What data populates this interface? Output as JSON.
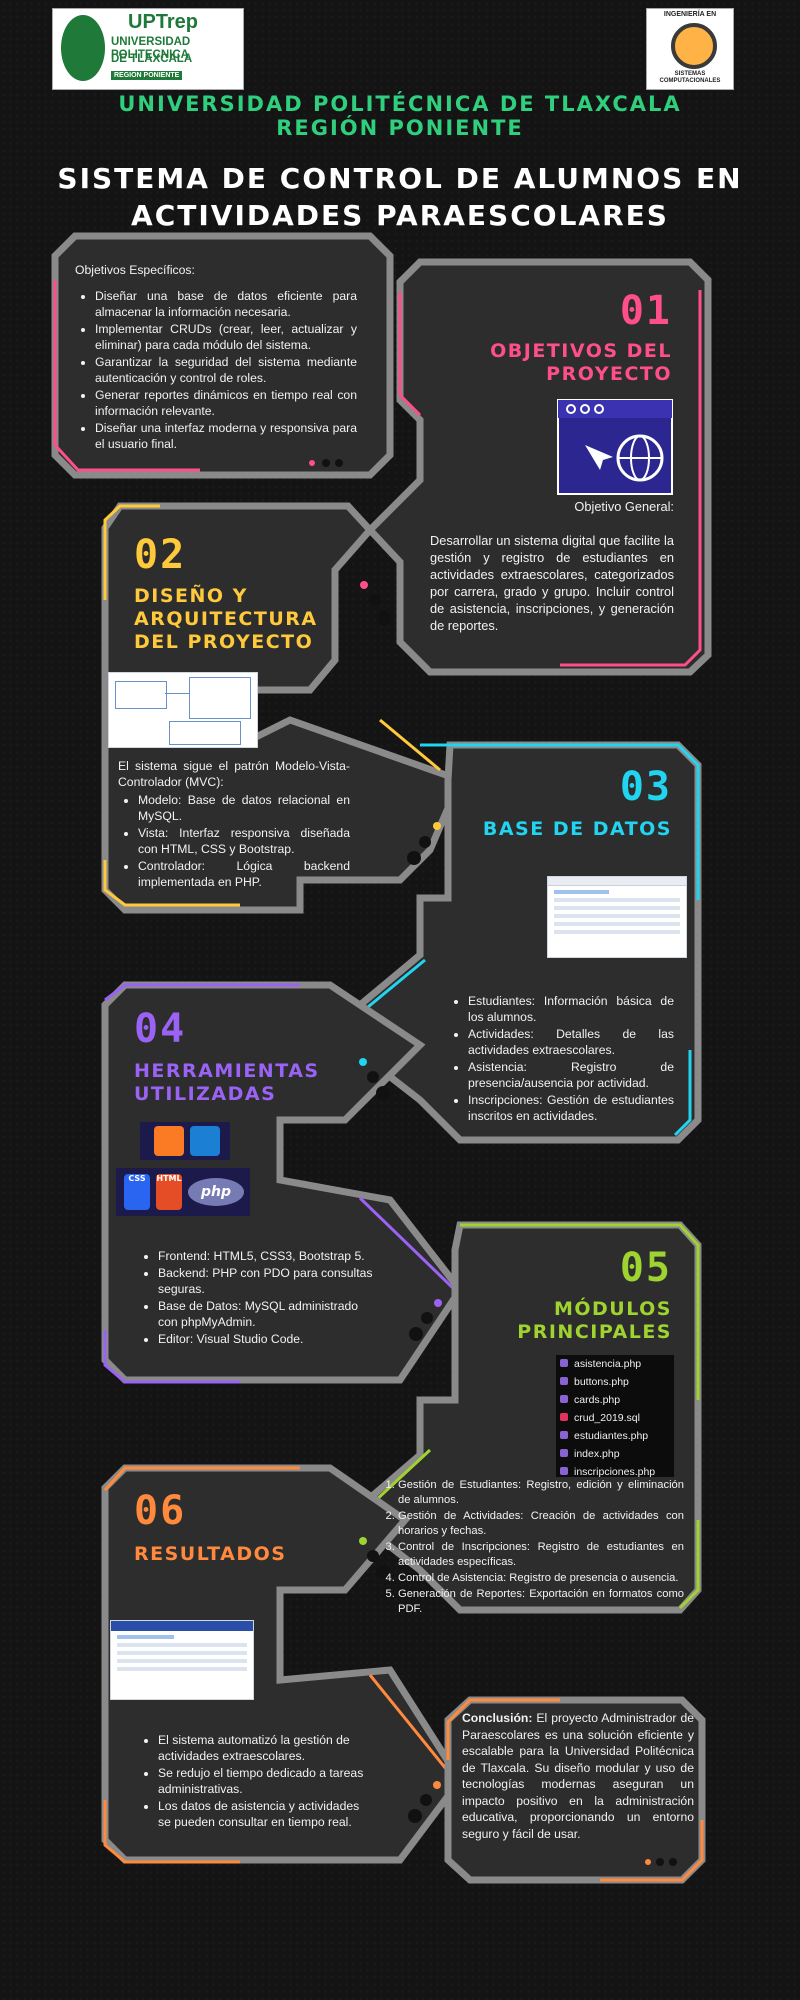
{
  "header": {
    "logo_left_lines": [
      "UPTrep",
      "UNIVERSIDAD POLITECNICA",
      "DE TLAXCALA",
      "REGION PONIENTE"
    ],
    "logo_right_lines": [
      "INGENIERÍA EN",
      "SISTEMAS COMPUTACIONALES"
    ],
    "university_line1": "UNIVERSIDAD POLITÉCNICA DE TLAXCALA",
    "university_line2": "REGIÓN PONIENTE",
    "title_line1": "SISTEMA DE CONTROL DE ALUMNOS EN",
    "title_line2": "ACTIVIDADES PARAESCOLARES"
  },
  "colors": {
    "pink": "#ff4f8b",
    "yellow": "#ffc93c",
    "cyan": "#21d4f0",
    "purple": "#9b63f5",
    "green": "#9fd32f",
    "orange": "#ff8a3d",
    "uni_green": "#2fcf7d",
    "dark": "#2d2d2d"
  },
  "s01": {
    "number": "01",
    "title_line1": "OBJETIVOS DEL",
    "title_line2": "PROYECTO",
    "specific_heading": "Objetivos Específicos:",
    "specific_items": [
      "Diseñar una base de datos eficiente para almacenar la información necesaria.",
      "Implementar CRUDs (crear, leer, actualizar y eliminar) para cada módulo del sistema.",
      "Garantizar la seguridad del sistema mediante autenticación y control de roles.",
      "Generar reportes dinámicos en tiempo real con información relevante.",
      "Diseñar una interfaz moderna y responsiva para el usuario final."
    ],
    "general_heading": "Objetivo General:",
    "general_text": "Desarrollar un sistema digital que facilite la gestión y registro de estudiantes en actividades extraescolares, categorizados por carrera, grado y grupo. Incluir control de asistencia, inscripciones, y generación de reportes."
  },
  "s02": {
    "number": "02",
    "title_line1": "DISEÑO Y",
    "title_line2": "ARQUITECTURA",
    "title_line3": "DEL PROYECTO",
    "intro": "El sistema sigue el patrón Modelo-Vista-Controlador (MVC):",
    "items": [
      "Modelo: Base de datos relacional en MySQL.",
      "Vista: Interfaz responsiva diseñada con HTML, CSS y Bootstrap.",
      "Controlador: Lógica backend implementada en PHP."
    ]
  },
  "s03": {
    "number": "03",
    "title": "BASE DE DATOS",
    "items": [
      "Estudiantes: Información básica de los alumnos.",
      "Actividades: Detalles de las actividades extraescolares.",
      "Asistencia: Registro de presencia/ausencia por actividad.",
      "Inscripciones: Gestión de estudiantes inscritos en actividades."
    ]
  },
  "s04": {
    "number": "04",
    "title_line1": "HERRAMIENTAS",
    "title_line2": "UTILIZADAS",
    "tool_labels": [
      "CSS",
      "HTML",
      "php"
    ],
    "items": [
      "Frontend: HTML5, CSS3, Bootstrap 5.",
      "Backend: PHP con PDO para consultas seguras.",
      "Base de Datos: MySQL administrado con phpMyAdmin.",
      "Editor: Visual Studio Code."
    ]
  },
  "s05": {
    "number": "05",
    "title_line1": "MÓDULOS",
    "title_line2": "PRINCIPALES",
    "files": [
      "asistencia.php",
      "buttons.php",
      "cards.php",
      "crud_2019.sql",
      "estudiantes.php",
      "index.php",
      "inscripciones.php"
    ],
    "items": [
      "Gestión de Estudiantes: Registro, edición y eliminación de alumnos.",
      "Gestión de Actividades: Creación de actividades con horarios y fechas.",
      "Control de Inscripciones: Registro de estudiantes en actividades específicas.",
      "Control de Asistencia: Registro de presencia o ausencia.",
      "Generación de Reportes: Exportación en formatos como PDF."
    ]
  },
  "s06": {
    "number": "06",
    "title": "RESULTADOS",
    "items": [
      "El sistema automatizó la gestión de actividades extraescolares.",
      "Se redujo el tiempo dedicado a tareas administrativas.",
      "Los datos de asistencia y actividades se pueden consultar en tiempo real."
    ],
    "conclusion_label": "Conclusión:",
    "conclusion_text": "El proyecto Administrador de Paraescolares es una solución eficiente y escalable para la Universidad Politécnica de Tlaxcala. Su diseño modular y uso de tecnologías modernas aseguran un impacto positivo en la administración educativa, proporcionando un entorno seguro y fácil de usar."
  }
}
